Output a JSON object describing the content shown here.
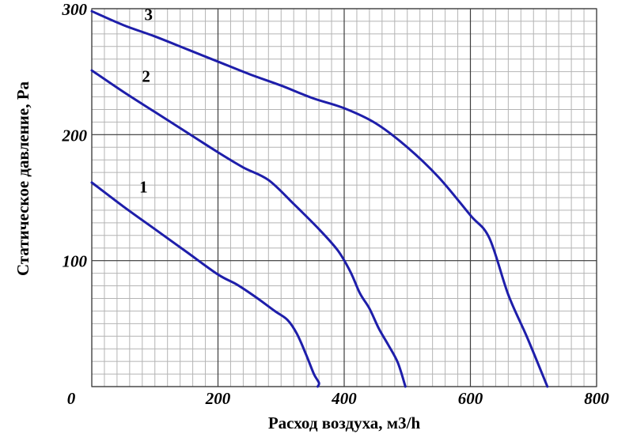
{
  "chart_data": {
    "type": "line",
    "title": "",
    "xlabel": "Расход воздуха, м3/h",
    "ylabel": "Статическое давление, Pa",
    "xlim": [
      0,
      800
    ],
    "ylim": [
      0,
      300
    ],
    "x_ticks": [
      {
        "value": 0,
        "label": "0"
      },
      {
        "value": 200,
        "label": "200"
      },
      {
        "value": 400,
        "label": "400"
      },
      {
        "value": 600,
        "label": "600"
      },
      {
        "value": 800,
        "label": "800"
      }
    ],
    "y_ticks": [
      {
        "value": 100,
        "label": "100"
      },
      {
        "value": 200,
        "label": "200"
      },
      {
        "value": 300,
        "label": "300"
      }
    ],
    "grid": true,
    "minor_grid": {
      "x_step": 20,
      "y_step": 10
    },
    "major_grid": {
      "x_step": 200,
      "y_step": 100
    },
    "line_color": "#1e1eaa",
    "minor_grid_color": "#b4b4b4",
    "major_grid_color": "#3c3c3c",
    "series": [
      {
        "curve_label": "1",
        "label_at": {
          "x": 82,
          "y": 154
        },
        "points": [
          [
            0,
            162
          ],
          [
            50,
            143
          ],
          [
            100,
            125
          ],
          [
            150,
            107
          ],
          [
            200,
            89
          ],
          [
            230,
            81
          ],
          [
            260,
            71
          ],
          [
            290,
            60
          ],
          [
            310,
            53
          ],
          [
            325,
            42
          ],
          [
            340,
            25
          ],
          [
            352,
            10
          ],
          [
            360,
            3
          ],
          [
            358,
            0
          ]
        ]
      },
      {
        "curve_label": "2",
        "label_at": {
          "x": 86,
          "y": 242
        },
        "points": [
          [
            0,
            251
          ],
          [
            50,
            234
          ],
          [
            100,
            218
          ],
          [
            150,
            202
          ],
          [
            200,
            186
          ],
          [
            240,
            174
          ],
          [
            280,
            164
          ],
          [
            320,
            145
          ],
          [
            360,
            125
          ],
          [
            390,
            108
          ],
          [
            410,
            91
          ],
          [
            425,
            74
          ],
          [
            440,
            62
          ],
          [
            455,
            46
          ],
          [
            470,
            33
          ],
          [
            485,
            19
          ],
          [
            497,
            0
          ]
        ]
      },
      {
        "curve_label": "3",
        "label_at": {
          "x": 90,
          "y": 291
        },
        "points": [
          [
            0,
            298
          ],
          [
            50,
            287
          ],
          [
            100,
            278
          ],
          [
            150,
            268
          ],
          [
            200,
            258
          ],
          [
            250,
            248
          ],
          [
            300,
            239
          ],
          [
            350,
            229
          ],
          [
            400,
            221
          ],
          [
            450,
            209
          ],
          [
            500,
            190
          ],
          [
            550,
            166
          ],
          [
            600,
            136
          ],
          [
            630,
            118
          ],
          [
            660,
            73
          ],
          [
            690,
            39
          ],
          [
            722,
            0
          ]
        ]
      }
    ]
  }
}
